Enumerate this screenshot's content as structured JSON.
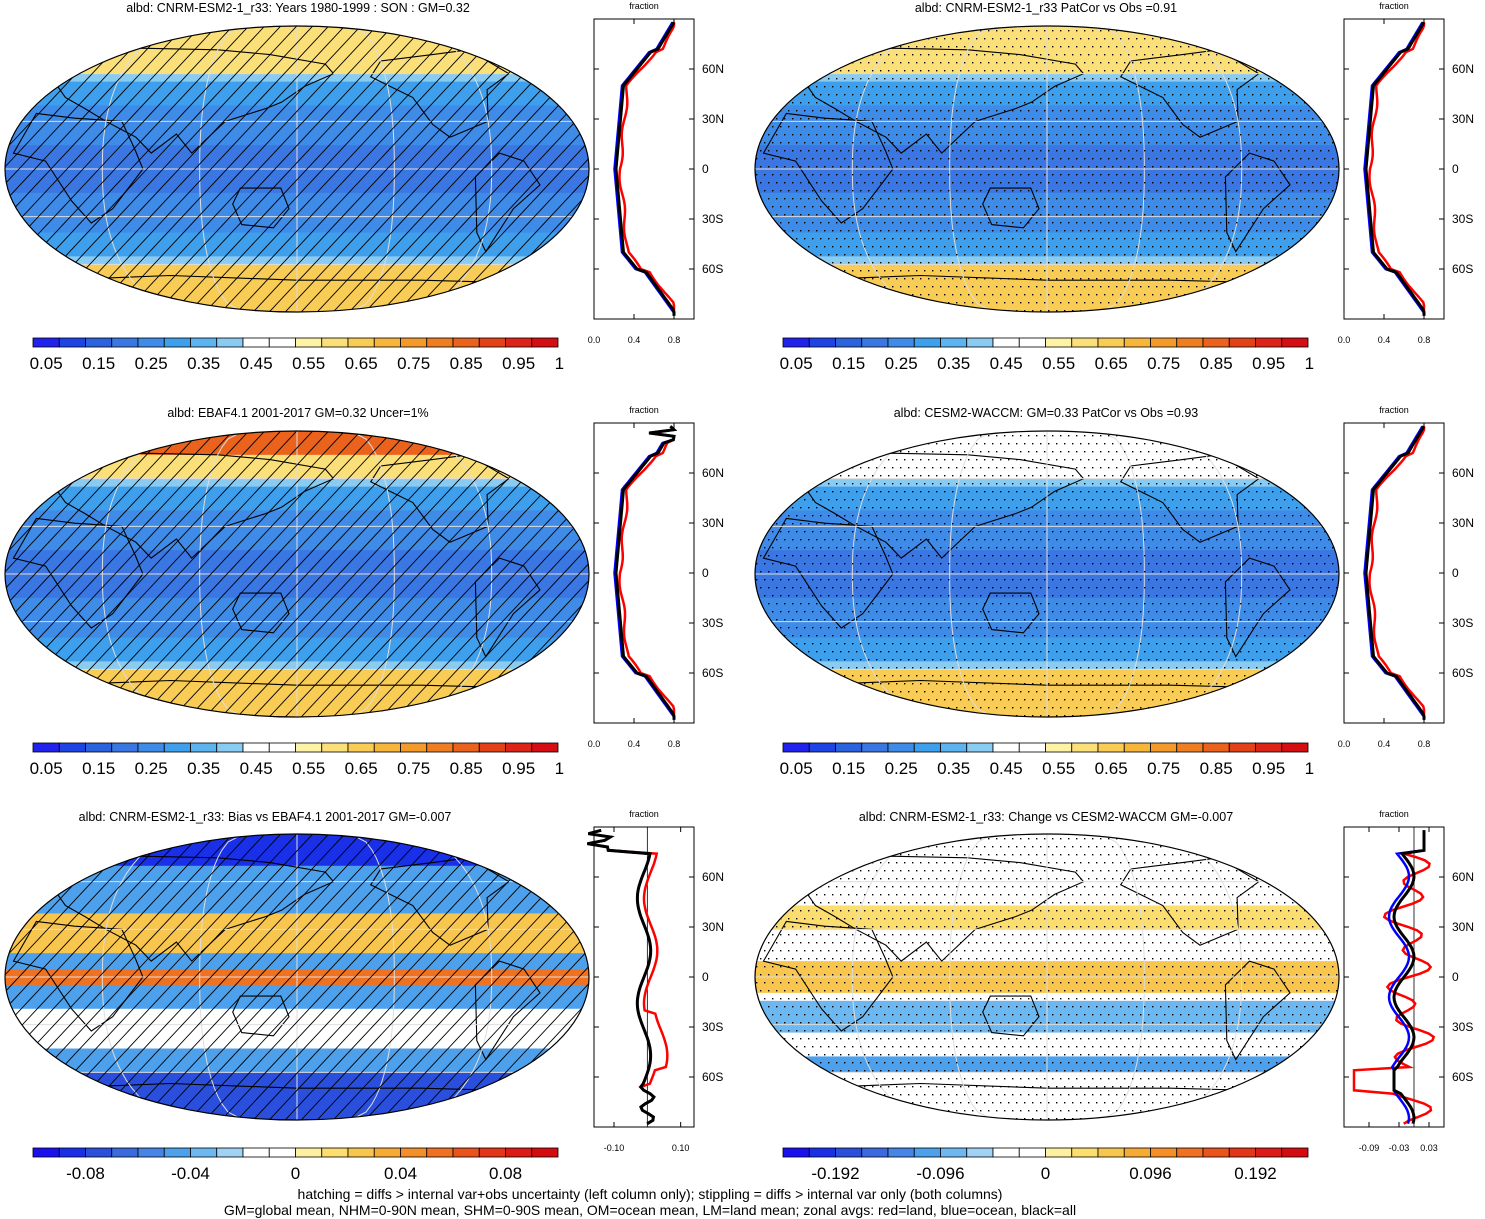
{
  "panels": [
    {
      "id": "tl",
      "title": "albd: CNRM-ESM2-1_r33: Years 1980-1999 : SON : GM=0.32",
      "pattern": "hatch",
      "field": "clim",
      "zonal": "clim",
      "cbar": "main"
    },
    {
      "id": "tr",
      "title": "albd: CNRM-ESM2-1_r33 PatCor vs Obs =0.91",
      "pattern": "stipple",
      "field": "clim",
      "zonal": "clim",
      "cbar": "main"
    },
    {
      "id": "ml",
      "title": "albd: EBAF4.1 2001-2017 GM=0.32 Uncer=1%",
      "pattern": "hatch",
      "field": "obs",
      "zonal": "obs",
      "cbar": "main"
    },
    {
      "id": "mr",
      "title": "albd: CESM2-WACCM: GM=0.33 PatCor vs Obs =0.93",
      "pattern": "stipple",
      "field": "cesm",
      "zonal": "clim",
      "cbar": "main"
    },
    {
      "id": "bl",
      "title": "albd: CNRM-ESM2-1_r33: Bias vs EBAF4.1 2001-2017  GM=-0.007",
      "pattern": "hatch",
      "field": "bias",
      "zonal": "bias",
      "cbar": "bias"
    },
    {
      "id": "br",
      "title": "albd: CNRM-ESM2-1_r33: Change vs CESM2-WACCM GM=-0.007",
      "pattern": "stipple",
      "field": "change",
      "zonal": "change",
      "cbar": "change"
    }
  ],
  "zonal": {
    "title": "fraction",
    "lat_labels": [
      "60N",
      "30N",
      "0",
      "30S",
      "60S"
    ],
    "lat_values": [
      60,
      30,
      0,
      -30,
      -60
    ],
    "clim_ticks": [
      "0.0",
      "0.4",
      "0.8"
    ],
    "clim_tick_values": [
      0.0,
      0.4,
      0.8
    ],
    "clim_range": [
      0.0,
      1.0
    ],
    "bias_ticks": [
      "-0.10",
      "0.10"
    ],
    "bias_tick_values": [
      -0.1,
      0.1
    ],
    "bias_range": [
      -0.16,
      0.14
    ],
    "change_ticks": [
      "-0.09",
      "-0.03",
      "0.03"
    ],
    "change_tick_values": [
      -0.09,
      -0.03,
      0.03
    ],
    "change_range": [
      -0.14,
      0.06
    ],
    "series": [
      {
        "name": "land",
        "color": "#ff0000"
      },
      {
        "name": "ocean",
        "color": "#0000ff"
      },
      {
        "name": "all",
        "color": "#000000"
      }
    ]
  },
  "colorbars": {
    "main": {
      "colors": [
        "#2222ee",
        "#1e44e6",
        "#2b62dd",
        "#3a77e2",
        "#3f8be8",
        "#3ea0ec",
        "#5cb3f0",
        "#8acbf2",
        "#ffffff",
        "#ffffff",
        "#fdf2a6",
        "#fbe07a",
        "#f8cc55",
        "#f6b53b",
        "#f39a2a",
        "#ef7e22",
        "#ea621c",
        "#e34219",
        "#dd2418",
        "#d40e12"
      ],
      "labels": [
        "0.05",
        "0.15",
        "0.25",
        "0.35",
        "0.45",
        "0.55",
        "0.65",
        "0.75",
        "0.85",
        "0.95",
        "1.05"
      ]
    },
    "bias": {
      "colors": [
        "#1b10f0",
        "#1930e8",
        "#2a4fdc",
        "#3b6ae0",
        "#4685e6",
        "#4da0ec",
        "#6db8f0",
        "#9fd2f4",
        "#ffffff",
        "#ffffff",
        "#fdf0a0",
        "#fbdd70",
        "#f8c64e",
        "#f6ab35",
        "#f38e28",
        "#ef7222",
        "#ea541c",
        "#e33619",
        "#dd1a16",
        "#d40c10"
      ],
      "labels": [
        "-0.08",
        "-0.04",
        "0",
        "0.04",
        "0.08"
      ]
    },
    "change": {
      "colors": [
        "#1b10f0",
        "#1930e8",
        "#2a4fdc",
        "#3b6ae0",
        "#4685e6",
        "#4da0ec",
        "#6db8f0",
        "#9fd2f4",
        "#ffffff",
        "#ffffff",
        "#fdf0a0",
        "#fbdd70",
        "#f8c64e",
        "#f6ab35",
        "#f38e28",
        "#ef7222",
        "#ea541c",
        "#e33619",
        "#dd1a16",
        "#d40c10"
      ],
      "labels": [
        "-0.192",
        "-0.096",
        "0",
        "0.096",
        "0.192"
      ]
    }
  },
  "footer": {
    "line1": "hatching = diffs > internal var+obs uncertainty (left column only); stippling = diffs > internal var only (both columns)",
    "line2": "GM=global mean, NHM=0-90N mean, SHM=0-90S mean, OM=ocean mean, LM=land mean; zonal avgs: red=land, blue=ocean, black=all"
  }
}
